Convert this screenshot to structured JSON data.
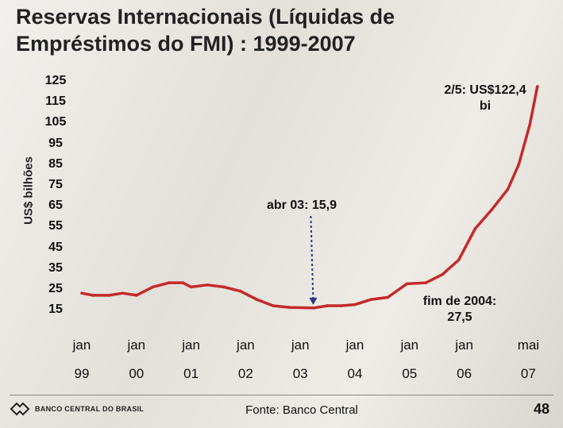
{
  "title": "Reservas Internacionais (Líquidas de Empréstimos do FMI) : 1999-2007",
  "source": "Fonte: Banco Central",
  "page_number": "48",
  "logo_text": "BANCO CENTRAL DO BRASIL",
  "chart_data": {
    "type": "line",
    "title": "Reservas Internacionais (Líquidas de Empréstimos do FMI) : 1999-2007",
    "ylabel": "US$ bilhões",
    "yticks": [
      "125",
      "115",
      "105",
      "95",
      "85",
      "75",
      "65",
      "55",
      "45",
      "35",
      "25",
      "15"
    ],
    "xticks": [
      {
        "top": "jan",
        "bottom": "99"
      },
      {
        "top": "jan",
        "bottom": "00"
      },
      {
        "top": "jan",
        "bottom": "01"
      },
      {
        "top": "jan",
        "bottom": "02"
      },
      {
        "top": "jan",
        "bottom": "03"
      },
      {
        "top": "jan",
        "bottom": "04"
      },
      {
        "top": "jan",
        "bottom": "05"
      },
      {
        "top": "jan",
        "bottom": "06"
      },
      {
        "top": "mai",
        "bottom": "07"
      }
    ],
    "ylim": [
      15,
      125
    ],
    "x": [
      1999.0,
      1999.2,
      1999.5,
      1999.75,
      2000.0,
      2000.3,
      2000.6,
      2000.85,
      2001.0,
      2001.3,
      2001.6,
      2001.9,
      2002.2,
      2002.5,
      2002.8,
      2003.1,
      2003.25,
      2003.5,
      2003.75,
      2004.0,
      2004.3,
      2004.6,
      2004.95,
      2005.3,
      2005.6,
      2005.9,
      2006.2,
      2006.5,
      2006.8,
      2007.0,
      2007.2,
      2007.34
    ],
    "values": [
      23,
      22,
      22,
      23,
      22,
      26,
      28,
      28,
      26,
      27,
      26,
      24,
      20,
      17,
      16.2,
      16.0,
      15.9,
      17,
      17,
      17.5,
      20,
      21,
      27.5,
      28,
      32,
      39,
      54,
      63,
      73,
      85,
      104,
      122.4
    ],
    "series_color": "#c42a2a",
    "annotations": [
      {
        "text": "2/5: US$122,4 bi"
      },
      {
        "text": "abr 03: 15,9"
      },
      {
        "text": "fim de 2004: 27,5"
      }
    ]
  }
}
